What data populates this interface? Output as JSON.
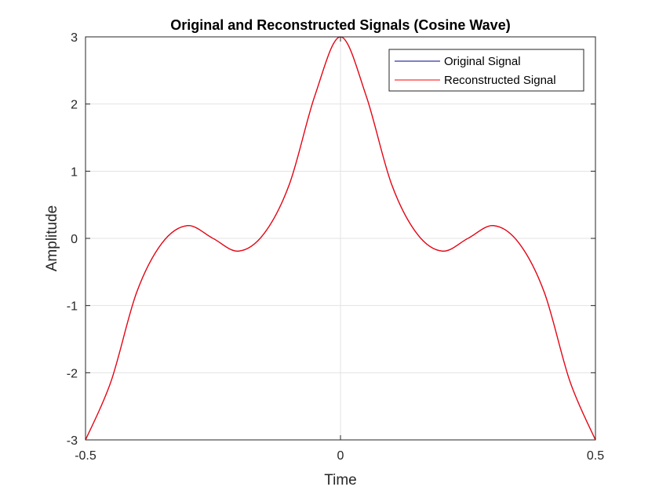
{
  "chart_data": {
    "type": "line",
    "title": "Original and Reconstructed Signals (Cosine Wave)",
    "xlabel": "Time",
    "ylabel": "Amplitude",
    "xlim": [
      -0.5,
      0.5
    ],
    "ylim": [
      -3,
      3
    ],
    "xticks": [
      -0.5,
      0,
      0.5
    ],
    "xtick_labels": [
      "-0.5",
      "0",
      "0.5"
    ],
    "yticks": [
      -3,
      -2,
      -1,
      0,
      1,
      2,
      3
    ],
    "ytick_labels": [
      "-3",
      "-2",
      "-1",
      "0",
      "1",
      "2",
      "3"
    ],
    "grid": true,
    "legend_position": "top-right",
    "x": [
      -0.5,
      -0.45,
      -0.4,
      -0.35,
      -0.3,
      -0.25,
      -0.2,
      -0.15,
      -0.1,
      -0.05,
      0,
      0.05,
      0.1,
      0.15,
      0.2,
      0.25,
      0.3,
      0.35,
      0.4,
      0.45,
      0.5
    ],
    "series": [
      {
        "name": "Original Signal",
        "color": "#00008b",
        "values": [
          -3,
          -2.13,
          -0.81,
          -0.07,
          0.19,
          0.0,
          -0.19,
          0.07,
          0.81,
          2.13,
          3,
          2.13,
          0.81,
          0.07,
          -0.19,
          0.0,
          0.19,
          -0.07,
          -0.81,
          -2.13,
          -3
        ]
      },
      {
        "name": "Reconstructed Signal",
        "color": "#ff0000",
        "values": [
          -3,
          -2.13,
          -0.81,
          -0.07,
          0.19,
          0.0,
          -0.19,
          0.07,
          0.81,
          2.13,
          3,
          2.13,
          0.81,
          0.07,
          -0.19,
          0.0,
          0.19,
          -0.07,
          -0.81,
          -2.13,
          -3
        ]
      }
    ]
  }
}
